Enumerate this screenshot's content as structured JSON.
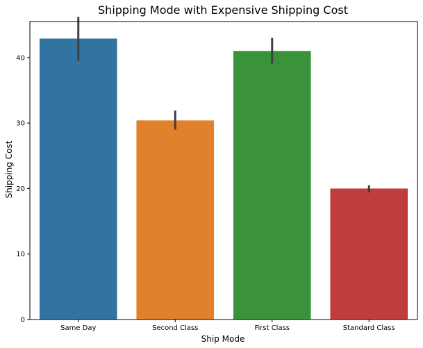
{
  "chart_data": {
    "type": "bar",
    "title": "Shipping Mode with Expensive Shipping Cost",
    "xlabel": "Ship Mode",
    "ylabel": "Shipping Cost",
    "categories": [
      "Same Day",
      "Second Class",
      "First Class",
      "Standard Class"
    ],
    "values": [
      42.9,
      30.4,
      41.0,
      20.0
    ],
    "error_bars": [
      [
        39.5,
        46.2
      ],
      [
        29.0,
        31.9
      ],
      [
        39.1,
        43.0
      ],
      [
        19.4,
        20.5
      ]
    ],
    "colors": [
      "#3274a1",
      "#e1812c",
      "#3a923a",
      "#c03d3e"
    ],
    "error_bar_color": "#3f3f3f",
    "ylim": [
      0,
      45.5
    ],
    "yticks": [
      0,
      10,
      20,
      30,
      40
    ],
    "grid": false,
    "legend": "none"
  }
}
